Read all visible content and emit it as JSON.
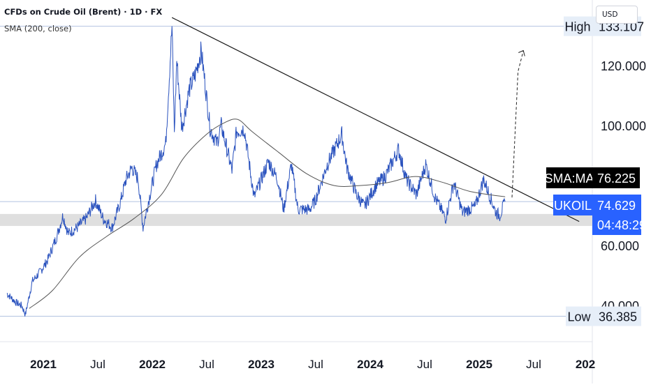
{
  "header": {
    "title": "CFDs on Crude Oil (Brent) · 1D · FX",
    "indicator": "SMA (200, close)"
  },
  "currency": "USD",
  "colors": {
    "price": "#2a52be",
    "sma": "#555555",
    "trendline": "#1a1a1a",
    "badge_symbol": "#2962ff",
    "badge_sma": "#000000",
    "support_zone": "#d9d9d9",
    "grid": "#e6e9f0"
  },
  "chart_data": {
    "type": "line",
    "x_ticks": [
      "2021",
      "Jul",
      "2022",
      "Jul",
      "2023",
      "Jul",
      "2024",
      "Jul",
      "2025",
      "Jul",
      "202"
    ],
    "y_ticks": [
      {
        "value": 120,
        "label": "120.000"
      },
      {
        "value": 100,
        "label": "100.000"
      },
      {
        "value": 60,
        "label": "60.000"
      },
      {
        "value": 40,
        "label": "40.000"
      }
    ],
    "ylim": [
      30,
      140
    ],
    "series": [
      {
        "name": "UKOIL",
        "points": [
          [
            "2020-09-01",
            44
          ],
          [
            "2020-10-01",
            41
          ],
          [
            "2020-10-20",
            40
          ],
          [
            "2020-11-02",
            37
          ],
          [
            "2020-11-25",
            48
          ],
          [
            "2020-12-20",
            51
          ],
          [
            "2021-01-15",
            55
          ],
          [
            "2021-02-15",
            63
          ],
          [
            "2021-03-08",
            70
          ],
          [
            "2021-03-25",
            64
          ],
          [
            "2021-04-25",
            66
          ],
          [
            "2021-05-25",
            69
          ],
          [
            "2021-06-25",
            75
          ],
          [
            "2021-07-20",
            69
          ],
          [
            "2021-08-20",
            66
          ],
          [
            "2021-09-15",
            74
          ],
          [
            "2021-10-05",
            82
          ],
          [
            "2021-10-25",
            86
          ],
          [
            "2021-11-15",
            82
          ],
          [
            "2021-12-01",
            66
          ],
          [
            "2021-12-20",
            75
          ],
          [
            "2022-01-15",
            87
          ],
          [
            "2022-02-15",
            94
          ],
          [
            "2022-03-08",
            133
          ],
          [
            "2022-03-16",
            98
          ],
          [
            "2022-03-24",
            122
          ],
          [
            "2022-04-10",
            99
          ],
          [
            "2022-05-05",
            112
          ],
          [
            "2022-05-25",
            117
          ],
          [
            "2022-06-14",
            125
          ],
          [
            "2022-07-14",
            99
          ],
          [
            "2022-08-05",
            94
          ],
          [
            "2022-08-20",
            100
          ],
          [
            "2022-09-25",
            85
          ],
          [
            "2022-10-10",
            98
          ],
          [
            "2022-11-05",
            99
          ],
          [
            "2022-12-08",
            76
          ],
          [
            "2023-01-25",
            88
          ],
          [
            "2023-02-25",
            82
          ],
          [
            "2023-03-17",
            72
          ],
          [
            "2023-04-12",
            87
          ],
          [
            "2023-05-04",
            72
          ],
          [
            "2023-06-12",
            72
          ],
          [
            "2023-07-01",
            75
          ],
          [
            "2023-08-10",
            87
          ],
          [
            "2023-09-28",
            97
          ],
          [
            "2023-10-15",
            86
          ],
          [
            "2023-11-16",
            77
          ],
          [
            "2023-12-12",
            73
          ],
          [
            "2024-01-20",
            80
          ],
          [
            "2024-02-20",
            83
          ],
          [
            "2024-04-05",
            92
          ],
          [
            "2024-05-01",
            82
          ],
          [
            "2024-06-04",
            77
          ],
          [
            "2024-07-05",
            87
          ],
          [
            "2024-08-05",
            76
          ],
          [
            "2024-09-10",
            69
          ],
          [
            "2024-10-07",
            81
          ],
          [
            "2024-11-05",
            71
          ],
          [
            "2024-12-18",
            73
          ],
          [
            "2025-01-15",
            82
          ],
          [
            "2025-02-25",
            71
          ],
          [
            "2025-03-10",
            70
          ],
          [
            "2025-03-28",
            74.629
          ]
        ]
      },
      {
        "name": "SMA",
        "points": [
          [
            "2020-11-15",
            39
          ],
          [
            "2021-02-01",
            45
          ],
          [
            "2021-05-01",
            56
          ],
          [
            "2021-08-01",
            63
          ],
          [
            "2021-11-01",
            69
          ],
          [
            "2022-02-01",
            77
          ],
          [
            "2022-04-15",
            89
          ],
          [
            "2022-07-01",
            97
          ],
          [
            "2022-09-01",
            101
          ],
          [
            "2022-10-15",
            102
          ],
          [
            "2022-12-01",
            98
          ],
          [
            "2023-03-01",
            91
          ],
          [
            "2023-06-01",
            84
          ],
          [
            "2023-09-01",
            80
          ],
          [
            "2023-12-01",
            80
          ],
          [
            "2024-03-01",
            81
          ],
          [
            "2024-06-01",
            83
          ],
          [
            "2024-09-01",
            81
          ],
          [
            "2024-12-01",
            78
          ],
          [
            "2025-03-28",
            76.225
          ]
        ]
      }
    ],
    "trendline": [
      [
        "2022-03-08",
        136
      ],
      [
        "2025-12-01",
        68
      ]
    ],
    "forecast": [
      [
        "2025-04-20",
        76
      ],
      [
        "2025-05-10",
        118
      ],
      [
        "2025-05-28",
        125
      ]
    ],
    "support_zone": [
      66.5,
      70.5
    ],
    "reference_lines": [
      133.107,
      36.385,
      74.629
    ],
    "labels": {
      "high_text": "High",
      "high_value": "133.107",
      "low_text": "Low",
      "low_value": "36.385",
      "sma_text": "SMA:MA",
      "sma_value": "76.225",
      "symbol_text": "UKOIL",
      "symbol_value": "74.629",
      "countdown": "04:48:29"
    }
  }
}
